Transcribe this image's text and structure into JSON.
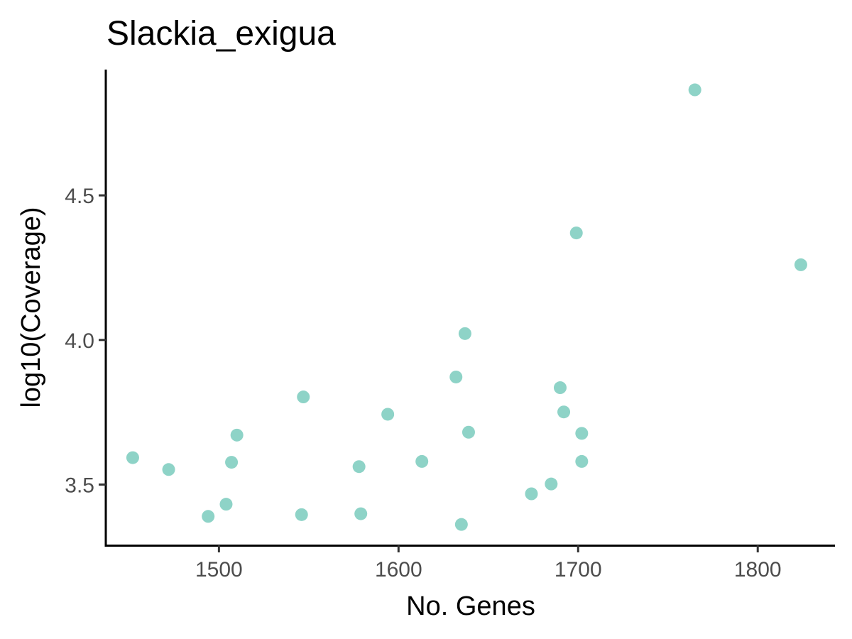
{
  "chart_data": {
    "type": "scatter",
    "title": "Slackia_exigua",
    "xlabel": "No. Genes",
    "ylabel": "log10(Coverage)",
    "xlim": [
      1437,
      1843
    ],
    "ylim": [
      3.29,
      4.935
    ],
    "x_ticks": [
      1500,
      1600,
      1700,
      1800
    ],
    "x_tick_labels": [
      "1500",
      "1600",
      "1700",
      "1800"
    ],
    "y_ticks": [
      3.5,
      4.0,
      4.5
    ],
    "y_tick_labels": [
      "3.5",
      "4.0",
      "4.5"
    ],
    "grid": false,
    "legend": "none",
    "point_color": "#8ed3c7",
    "axis_color": "#000000",
    "tick_label_color": "#4d4d4d",
    "points": [
      {
        "x": 1452,
        "y": 3.593
      },
      {
        "x": 1472,
        "y": 3.552
      },
      {
        "x": 1494,
        "y": 3.39
      },
      {
        "x": 1504,
        "y": 3.432
      },
      {
        "x": 1507,
        "y": 3.577
      },
      {
        "x": 1510,
        "y": 3.671
      },
      {
        "x": 1546,
        "y": 3.396
      },
      {
        "x": 1547,
        "y": 3.803
      },
      {
        "x": 1578,
        "y": 3.562
      },
      {
        "x": 1579,
        "y": 3.399
      },
      {
        "x": 1594,
        "y": 3.743
      },
      {
        "x": 1613,
        "y": 3.58
      },
      {
        "x": 1632,
        "y": 3.872
      },
      {
        "x": 1635,
        "y": 3.362
      },
      {
        "x": 1637,
        "y": 4.022
      },
      {
        "x": 1639,
        "y": 3.681
      },
      {
        "x": 1674,
        "y": 3.468
      },
      {
        "x": 1685,
        "y": 3.502
      },
      {
        "x": 1690,
        "y": 3.835
      },
      {
        "x": 1692,
        "y": 3.751
      },
      {
        "x": 1699,
        "y": 4.37
      },
      {
        "x": 1702,
        "y": 3.677
      },
      {
        "x": 1702,
        "y": 3.58
      },
      {
        "x": 1765,
        "y": 4.865
      },
      {
        "x": 1824,
        "y": 4.26
      }
    ]
  }
}
